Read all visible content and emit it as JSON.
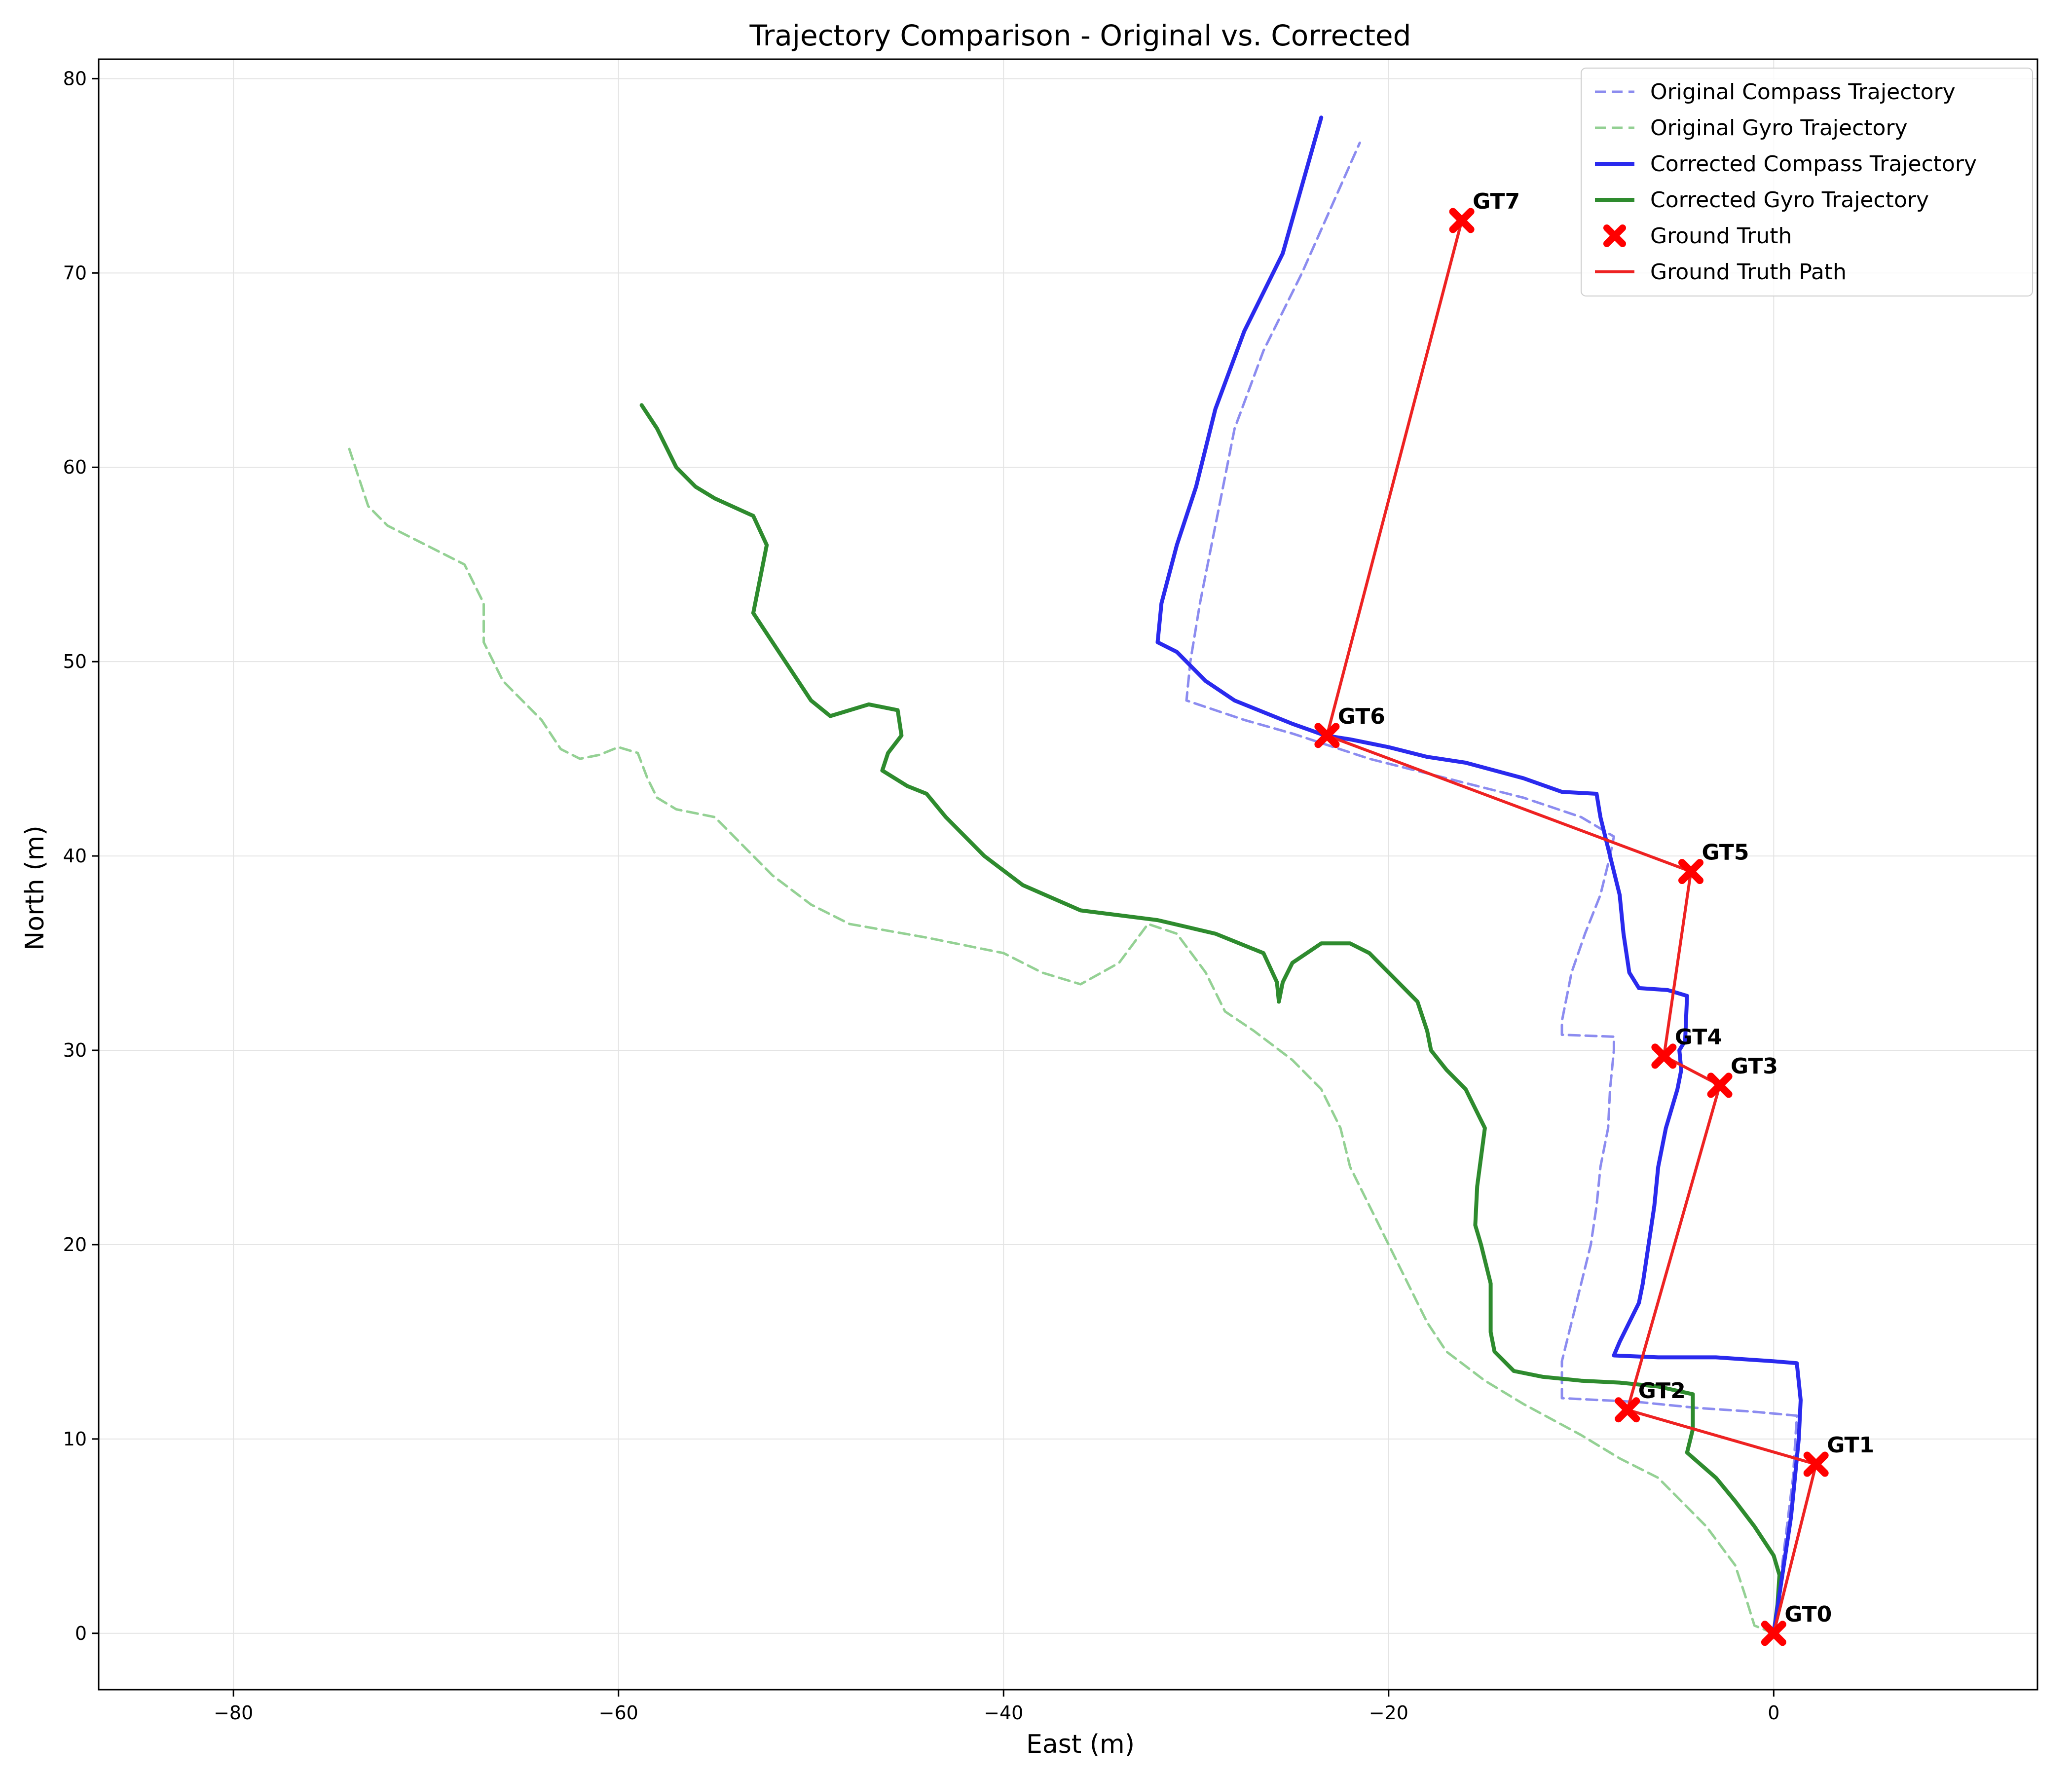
{
  "chart_data": {
    "type": "line",
    "title": "Trajectory Comparison - Original vs. Corrected",
    "xlabel": "East (m)",
    "ylabel": "North (m)",
    "xlim": [
      -87,
      13.7
    ],
    "ylim": [
      -2.9,
      81
    ],
    "xticks": [
      -80,
      -60,
      -40,
      -20,
      0
    ],
    "yticks": [
      0,
      10,
      20,
      30,
      40,
      50,
      60,
      70,
      80
    ],
    "grid": true,
    "legend_position": "top-right",
    "legend": [
      "Original Compass Trajectory",
      "Original Gyro Trajectory",
      "Corrected Compass Trajectory",
      "Corrected Gyro Trajectory",
      "Ground Truth",
      "Ground Truth Path"
    ],
    "series": [
      {
        "name": "Original Compass Trajectory",
        "color": "#8080ee",
        "style": "dashed",
        "points": [
          [
            0,
            0
          ],
          [
            0.5,
            4
          ],
          [
            1,
            8
          ],
          [
            1.2,
            11.2
          ],
          [
            -1,
            11.4
          ],
          [
            -4,
            11.6
          ],
          [
            -7,
            11.9
          ],
          [
            -11,
            12.1
          ],
          [
            -11,
            14
          ],
          [
            -10.5,
            16
          ],
          [
            -10,
            18
          ],
          [
            -9.5,
            20
          ],
          [
            -9.2,
            22
          ],
          [
            -9,
            24
          ],
          [
            -8.6,
            26
          ],
          [
            -8.5,
            28
          ],
          [
            -8.3,
            30
          ],
          [
            -8.3,
            30.7
          ],
          [
            -11,
            30.8
          ],
          [
            -11,
            31.5
          ],
          [
            -10.5,
            34
          ],
          [
            -9.8,
            36
          ],
          [
            -9,
            38
          ],
          [
            -8.5,
            40
          ],
          [
            -8.3,
            41
          ],
          [
            -10,
            42
          ],
          [
            -13,
            43
          ],
          [
            -17,
            44
          ],
          [
            -21,
            45
          ],
          [
            -25,
            46.3
          ],
          [
            -27.5,
            47
          ],
          [
            -30.5,
            48
          ],
          [
            -30.3,
            50
          ],
          [
            -29.8,
            53
          ],
          [
            -29,
            57
          ],
          [
            -28,
            62
          ],
          [
            -26.5,
            66
          ],
          [
            -24.5,
            70
          ],
          [
            -21.5,
            76.7
          ]
        ]
      },
      {
        "name": "Original Gyro Trajectory",
        "color": "#88cc88",
        "style": "dashed",
        "points": [
          [
            0,
            0
          ],
          [
            -1,
            0.4
          ],
          [
            -1.5,
            2
          ],
          [
            -2,
            3.5
          ],
          [
            -3.5,
            5.5
          ],
          [
            -6,
            8
          ],
          [
            -8,
            9
          ],
          [
            -10,
            10.2
          ],
          [
            -13,
            11.8
          ],
          [
            -15,
            13
          ],
          [
            -17,
            14.5
          ],
          [
            -18,
            16
          ],
          [
            -19,
            18
          ],
          [
            -20,
            20
          ],
          [
            -21,
            22
          ],
          [
            -22,
            24
          ],
          [
            -22.5,
            26
          ],
          [
            -23.5,
            28
          ],
          [
            -25,
            29.5
          ],
          [
            -27,
            31
          ],
          [
            -28.5,
            32
          ],
          [
            -29.5,
            34
          ],
          [
            -31,
            36
          ],
          [
            -32.5,
            36.5
          ],
          [
            -34,
            34.5
          ],
          [
            -36,
            33.4
          ],
          [
            -38,
            34
          ],
          [
            -40,
            35
          ],
          [
            -44,
            35.8
          ],
          [
            -48,
            36.5
          ],
          [
            -50,
            37.5
          ],
          [
            -52,
            39
          ],
          [
            -54,
            41
          ],
          [
            -55,
            42
          ],
          [
            -57,
            42.4
          ],
          [
            -58,
            43
          ],
          [
            -58.5,
            44
          ],
          [
            -59,
            45.3
          ],
          [
            -60,
            45.6
          ],
          [
            -61,
            45.2
          ],
          [
            -62,
            45
          ],
          [
            -63,
            45.5
          ],
          [
            -64,
            47
          ],
          [
            -65,
            48
          ],
          [
            -66,
            49
          ],
          [
            -67,
            51
          ],
          [
            -67,
            53
          ],
          [
            -68,
            55
          ],
          [
            -70,
            56
          ],
          [
            -72,
            57
          ],
          [
            -73,
            58
          ],
          [
            -74,
            61
          ]
        ]
      },
      {
        "name": "Corrected Compass Trajectory",
        "color": "#2a2aee",
        "style": "solid",
        "points": [
          [
            0,
            0
          ],
          [
            0.3,
            2
          ],
          [
            0.6,
            4
          ],
          [
            0.9,
            6
          ],
          [
            1.1,
            8
          ],
          [
            1.3,
            10
          ],
          [
            1.4,
            12
          ],
          [
            1.2,
            13.9
          ],
          [
            0,
            14
          ],
          [
            -3,
            14.2
          ],
          [
            -6,
            14.2
          ],
          [
            -8.3,
            14.3
          ],
          [
            -8,
            15
          ],
          [
            -7.5,
            16
          ],
          [
            -7,
            17
          ],
          [
            -6.8,
            18
          ],
          [
            -6.5,
            20
          ],
          [
            -6.2,
            22
          ],
          [
            -6,
            24
          ],
          [
            -5.6,
            26
          ],
          [
            -5,
            28
          ],
          [
            -4.8,
            29
          ],
          [
            -4.9,
            30
          ],
          [
            -4.6,
            30.5
          ],
          [
            -4.5,
            32.8
          ],
          [
            -5.5,
            33.1
          ],
          [
            -7,
            33.2
          ],
          [
            -7.5,
            34
          ],
          [
            -7.8,
            36
          ],
          [
            -8,
            38
          ],
          [
            -8.5,
            40
          ],
          [
            -9,
            42
          ],
          [
            -9.2,
            43.2
          ],
          [
            -11,
            43.3
          ],
          [
            -13,
            44
          ],
          [
            -16,
            44.8
          ],
          [
            -18,
            45.1
          ],
          [
            -20,
            45.6
          ],
          [
            -22,
            46
          ],
          [
            -23.3,
            46.2
          ],
          [
            -25,
            46.8
          ],
          [
            -28,
            48
          ],
          [
            -29.5,
            49
          ],
          [
            -30.5,
            50
          ],
          [
            -31,
            50.5
          ],
          [
            -32,
            51
          ],
          [
            -31.8,
            53
          ],
          [
            -31,
            56
          ],
          [
            -30,
            59
          ],
          [
            -29,
            63
          ],
          [
            -27.5,
            67
          ],
          [
            -25.5,
            71
          ],
          [
            -23.5,
            78
          ]
        ]
      },
      {
        "name": "Corrected Gyro Trajectory",
        "color": "#2e8b2e",
        "style": "solid",
        "points": [
          [
            0,
            0
          ],
          [
            0.2,
            1.5
          ],
          [
            0.3,
            3
          ],
          [
            0,
            4
          ],
          [
            -1,
            5.5
          ],
          [
            -2,
            6.8
          ],
          [
            -3,
            8
          ],
          [
            -4.5,
            9.3
          ],
          [
            -4.2,
            10.5
          ],
          [
            -4.2,
            12.3
          ],
          [
            -6,
            12.7
          ],
          [
            -8,
            12.9
          ],
          [
            -10,
            13
          ],
          [
            -12,
            13.2
          ],
          [
            -13.5,
            13.5
          ],
          [
            -14.5,
            14.5
          ],
          [
            -14.7,
            15.5
          ],
          [
            -14.7,
            18
          ],
          [
            -15.2,
            20
          ],
          [
            -15.5,
            21
          ],
          [
            -15.4,
            23
          ],
          [
            -15,
            26
          ],
          [
            -16,
            28
          ],
          [
            -17,
            29
          ],
          [
            -17.8,
            30
          ],
          [
            -18,
            31
          ],
          [
            -18.5,
            32.5
          ],
          [
            -19.5,
            33.5
          ],
          [
            -20,
            34
          ],
          [
            -21,
            35
          ],
          [
            -22,
            35.5
          ],
          [
            -23.5,
            35.5
          ],
          [
            -25,
            34.5
          ],
          [
            -25.5,
            33.5
          ],
          [
            -25.7,
            32.5
          ],
          [
            -25.8,
            33.5
          ],
          [
            -26.5,
            35
          ],
          [
            -29,
            36
          ],
          [
            -32,
            36.7
          ],
          [
            -36,
            37.2
          ],
          [
            -39,
            38.5
          ],
          [
            -41,
            40
          ],
          [
            -43,
            42
          ],
          [
            -44,
            43.2
          ],
          [
            -45,
            43.6
          ],
          [
            -46.3,
            44.4
          ],
          [
            -46,
            45.3
          ],
          [
            -45.3,
            46.2
          ],
          [
            -45.5,
            47.5
          ],
          [
            -47,
            47.8
          ],
          [
            -49,
            47.2
          ],
          [
            -50,
            48
          ],
          [
            -51,
            49.5
          ],
          [
            -52,
            51
          ],
          [
            -53,
            52.5
          ],
          [
            -52.7,
            54
          ],
          [
            -52.3,
            56
          ],
          [
            -53,
            57.5
          ],
          [
            -55,
            58.4
          ],
          [
            -56,
            59
          ],
          [
            -57,
            60
          ],
          [
            -58,
            62
          ],
          [
            -58.8,
            63.2
          ]
        ]
      },
      {
        "name": "Ground Truth Path",
        "color": "#ee2222",
        "style": "solid",
        "points": [
          [
            0,
            0
          ],
          [
            2.2,
            8.7
          ],
          [
            -7.6,
            11.5
          ],
          [
            -2.8,
            28.2
          ],
          [
            -5.7,
            29.7
          ],
          [
            -4.3,
            39.2
          ],
          [
            -23.2,
            46.2
          ],
          [
            -16.2,
            72.7
          ]
        ]
      }
    ],
    "ground_truth": [
      {
        "label": "GT0",
        "x": 0,
        "y": 0
      },
      {
        "label": "GT1",
        "x": 2.2,
        "y": 8.7
      },
      {
        "label": "GT2",
        "x": -7.6,
        "y": 11.5
      },
      {
        "label": "GT3",
        "x": -2.8,
        "y": 28.2
      },
      {
        "label": "GT4",
        "x": -5.7,
        "y": 29.7
      },
      {
        "label": "GT5",
        "x": -4.3,
        "y": 39.2
      },
      {
        "label": "GT6",
        "x": -23.2,
        "y": 46.2
      },
      {
        "label": "GT7",
        "x": -16.2,
        "y": 72.7
      }
    ]
  }
}
